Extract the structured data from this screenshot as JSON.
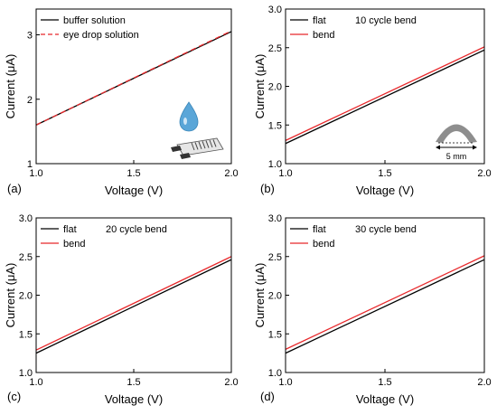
{
  "chart_data": [
    {
      "type": "line",
      "panel_label": "(a)",
      "xlabel": "Voltage (V)",
      "ylabel": "Current (μA)",
      "xlim": [
        1.0,
        2.0
      ],
      "ylim": [
        1.0,
        3.4
      ],
      "xticks": [
        "1.0",
        "1.5",
        "2.0"
      ],
      "xtick_values": [
        1.0,
        1.5,
        2.0
      ],
      "yticks": [
        "1",
        "2",
        "3"
      ],
      "ytick_values": [
        1,
        2,
        3
      ],
      "legend_position": "top-left",
      "annotation": "",
      "inset": "eye-drop-sensor",
      "inset_label": "",
      "series": [
        {
          "name": "buffer solution",
          "color": "#000000",
          "dash": "solid",
          "x": [
            1.0,
            2.0
          ],
          "y": [
            1.6,
            3.05
          ]
        },
        {
          "name": "eye drop solution",
          "color": "#e8282b",
          "dash": "dashed",
          "x": [
            1.0,
            2.0
          ],
          "y": [
            1.6,
            3.06
          ]
        }
      ]
    },
    {
      "type": "line",
      "panel_label": "(b)",
      "xlabel": "Voltage (V)",
      "ylabel": "Current (μA)",
      "xlim": [
        1.0,
        2.0
      ],
      "ylim": [
        1.0,
        3.0
      ],
      "xticks": [
        "1.0",
        "1.5",
        "2.0"
      ],
      "xtick_values": [
        1.0,
        1.5,
        2.0
      ],
      "yticks": [
        "1.0",
        "1.5",
        "2.0",
        "2.5",
        "3.0"
      ],
      "ytick_values": [
        1.0,
        1.5,
        2.0,
        2.5,
        3.0
      ],
      "legend_position": "top-left",
      "annotation": "10 cycle bend",
      "inset": "bend-arc",
      "inset_label": "5 mm",
      "series": [
        {
          "name": "flat",
          "color": "#000000",
          "dash": "solid",
          "x": [
            1.0,
            2.0
          ],
          "y": [
            1.26,
            2.47
          ]
        },
        {
          "name": "bend",
          "color": "#e8282b",
          "dash": "solid",
          "x": [
            1.0,
            2.0
          ],
          "y": [
            1.3,
            2.51
          ]
        }
      ]
    },
    {
      "type": "line",
      "panel_label": "(c)",
      "xlabel": "Voltage (V)",
      "ylabel": "Current (μA)",
      "xlim": [
        1.0,
        2.0
      ],
      "ylim": [
        1.0,
        3.0
      ],
      "xticks": [
        "1.0",
        "1.5",
        "2.0"
      ],
      "xtick_values": [
        1.0,
        1.5,
        2.0
      ],
      "yticks": [
        "1.0",
        "1.5",
        "2.0",
        "2.5",
        "3.0"
      ],
      "ytick_values": [
        1.0,
        1.5,
        2.0,
        2.5,
        3.0
      ],
      "legend_position": "top-left",
      "annotation": "20 cycle bend",
      "inset": "",
      "inset_label": "",
      "series": [
        {
          "name": "flat",
          "color": "#000000",
          "dash": "solid",
          "x": [
            1.0,
            2.0
          ],
          "y": [
            1.25,
            2.46
          ]
        },
        {
          "name": "bend",
          "color": "#e8282b",
          "dash": "solid",
          "x": [
            1.0,
            2.0
          ],
          "y": [
            1.29,
            2.5
          ]
        }
      ]
    },
    {
      "type": "line",
      "panel_label": "(d)",
      "xlabel": "Voltage (V)",
      "ylabel": "Current (μA)",
      "xlim": [
        1.0,
        2.0
      ],
      "ylim": [
        1.0,
        3.0
      ],
      "xticks": [
        "1.0",
        "1.5",
        "2.0"
      ],
      "xtick_values": [
        1.0,
        1.5,
        2.0
      ],
      "yticks": [
        "1.0",
        "1.5",
        "2.0",
        "2.5",
        "3.0"
      ],
      "ytick_values": [
        1.0,
        1.5,
        2.0,
        2.5,
        3.0
      ],
      "legend_position": "top-left",
      "annotation": "30 cycle bend",
      "inset": "",
      "inset_label": "",
      "series": [
        {
          "name": "flat",
          "color": "#000000",
          "dash": "solid",
          "x": [
            1.0,
            2.0
          ],
          "y": [
            1.25,
            2.46
          ]
        },
        {
          "name": "bend",
          "color": "#e8282b",
          "dash": "solid",
          "x": [
            1.0,
            2.0
          ],
          "y": [
            1.3,
            2.51
          ]
        }
      ]
    }
  ]
}
